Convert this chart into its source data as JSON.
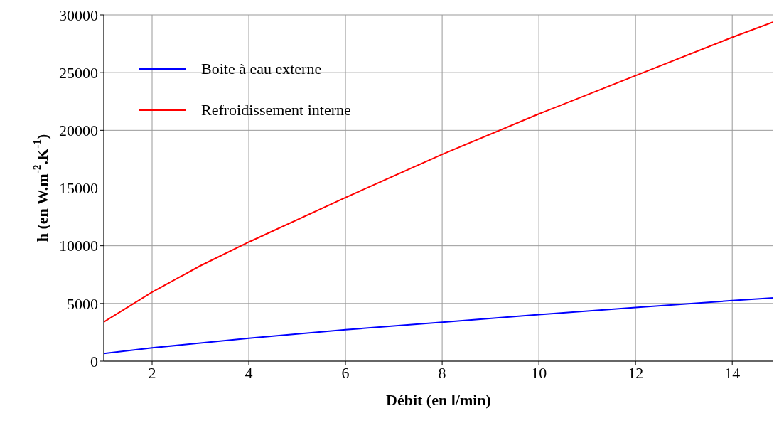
{
  "chart_data": {
    "type": "line",
    "xlabel": "Débit (en l/min)",
    "ylabel": "h (en W.m$^{-2}$.K$^{-1}$)",
    "xlim": [
      1,
      14.85
    ],
    "xticks": [
      2,
      4,
      6,
      8,
      10,
      12,
      14
    ],
    "ylim": [
      0,
      30000
    ],
    "yticks": [
      0,
      5000,
      10000,
      15000,
      20000,
      25000,
      30000
    ],
    "grid": true,
    "legend": "top left",
    "marker": "none",
    "line_style": "solid",
    "series": [
      {
        "name": "Boite à eau externe",
        "color": "#0000ff",
        "x": [
          1,
          2,
          4,
          6,
          8,
          10,
          12,
          14,
          14.85
        ],
        "values": [
          660,
          1150,
          1990,
          2720,
          3380,
          4040,
          4650,
          5250,
          5490
        ]
      },
      {
        "name": "Refroidissement interne",
        "color": "#ff0000",
        "x": [
          1,
          2,
          3,
          4,
          6,
          8,
          10,
          12,
          14,
          14.85
        ],
        "values": [
          3400,
          5980,
          8270,
          10320,
          14180,
          17920,
          21420,
          24740,
          28060,
          29390
        ]
      }
    ]
  }
}
